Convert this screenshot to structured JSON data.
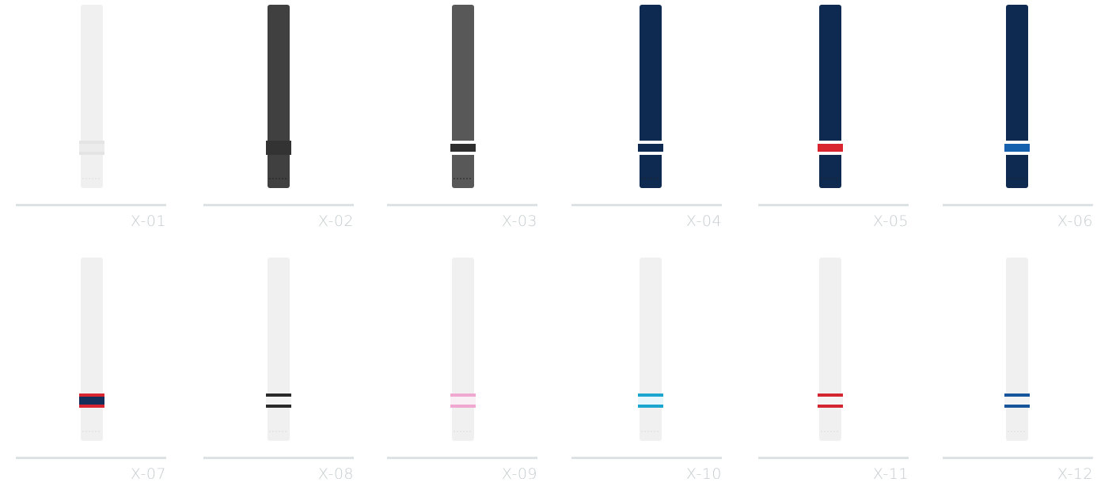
{
  "items": [
    {
      "label": "X-01"
    },
    {
      "label": "X-02"
    },
    {
      "label": "X-03"
    },
    {
      "label": "X-04"
    },
    {
      "label": "X-05"
    },
    {
      "label": "X-06"
    },
    {
      "label": "X-07"
    },
    {
      "label": "X-08"
    },
    {
      "label": "X-09"
    },
    {
      "label": "X-10"
    },
    {
      "label": "X-11"
    },
    {
      "label": "X-12"
    }
  ]
}
